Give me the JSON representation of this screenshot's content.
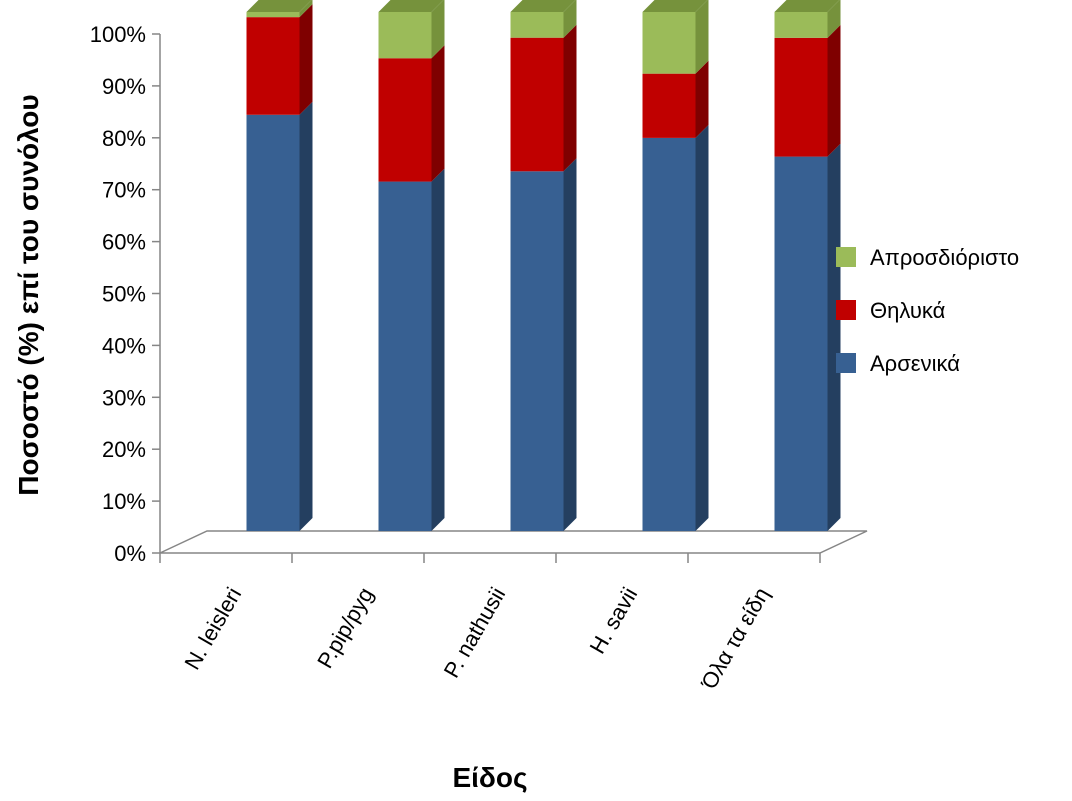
{
  "chart_data": {
    "type": "bar",
    "stacked": true,
    "three_d": true,
    "categories": [
      "N. leisleri",
      "P.pip/pyg",
      "P. nathusii",
      "H. savii",
      "Όλα τα είδη"
    ],
    "series": [
      {
        "name": "Αρσενικά",
        "color": "#376092",
        "side_color": "#243F60",
        "values": [
          81,
          68,
          70,
          76.5,
          72.5
        ]
      },
      {
        "name": "Θηλυκά",
        "color": "#C00000",
        "side_color": "#7F0000",
        "values": [
          19,
          24,
          26,
          12.5,
          23
        ]
      },
      {
        "name": "Απροσδιόριστο",
        "color": "#9BBB59",
        "side_color": "#76923C",
        "values": [
          1,
          9,
          5,
          12,
          5
        ]
      }
    ],
    "xlabel": "Είδος",
    "ylabel": "Ποσοστό (%) επί του συνόλου",
    "ylim": [
      0,
      100
    ],
    "yticks": [
      "0%",
      "10%",
      "20%",
      "30%",
      "40%",
      "50%",
      "60%",
      "70%",
      "80%",
      "90%",
      "100%"
    ],
    "legend": {
      "position": "right",
      "order": [
        "Απροσδιόριστο",
        "Θηλυκά",
        "Αρσενικά"
      ]
    },
    "grid": false
  }
}
